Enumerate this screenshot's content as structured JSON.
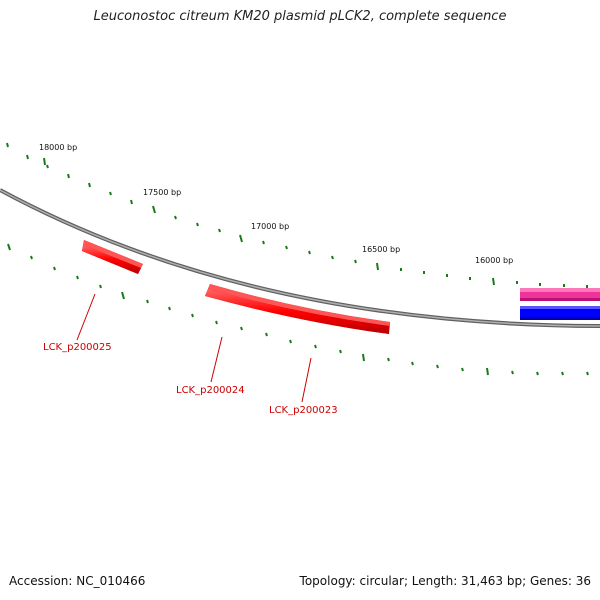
{
  "header": {
    "title": "Leuconostoc citreum KM20 plasmid pLCK2, complete sequence"
  },
  "map": {
    "ticks": [
      {
        "bp": 18000,
        "label": "18000 bp"
      },
      {
        "bp": 17500,
        "label": "17500 bp"
      },
      {
        "bp": 17000,
        "label": "17000 bp"
      },
      {
        "bp": 16500,
        "label": "16500 bp"
      },
      {
        "bp": 16000,
        "label": "16000 bp"
      }
    ],
    "genes": [
      {
        "id": "LCK_p200025",
        "label": "LCK_p200025"
      },
      {
        "id": "LCK_p200024",
        "label": "LCK_p200024"
      },
      {
        "id": "LCK_p200023",
        "label": "LCK_p200023"
      }
    ],
    "colors": {
      "gene": "#ff0000",
      "gene_label": "#cc0000",
      "backbone": "#808080",
      "tick": "#1a7a1a",
      "feature_magenta": "#ee3399",
      "feature_blue": "#0000ff"
    }
  },
  "footer": {
    "accession": "Accession: NC_010466",
    "topology": "Topology: circular; Length: 31,463 bp; Genes: 36"
  }
}
